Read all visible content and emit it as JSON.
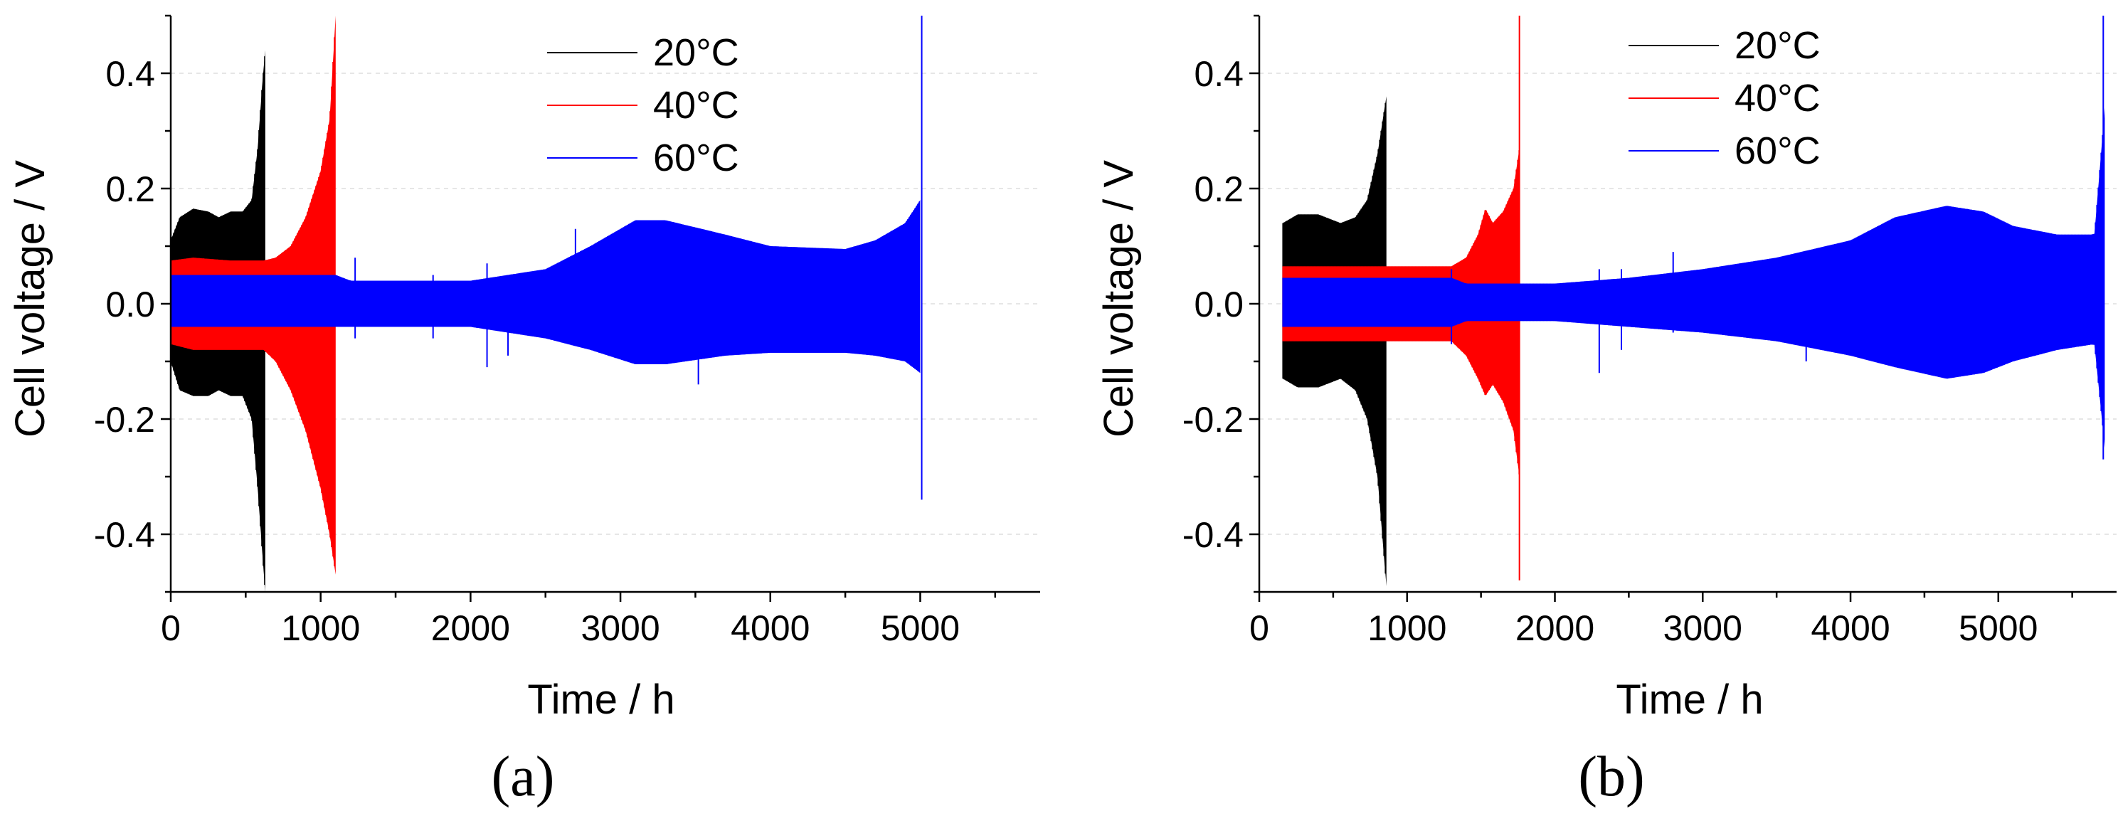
{
  "figure": {
    "colors": {
      "20C": "#000000",
      "40C": "#ff0000",
      "60C": "#0000ff",
      "grid": "#dddddd",
      "axis": "#000000"
    }
  },
  "chart_data": [
    {
      "type": "line",
      "panel_label": "(a)",
      "xlabel": "Time / h",
      "ylabel": "Cell voltage / V",
      "xlim": [
        0,
        5800
      ],
      "ylim": [
        -0.5,
        0.5
      ],
      "xticks": [
        0,
        1000,
        2000,
        3000,
        4000,
        5000
      ],
      "xtick_labels": [
        "0",
        "1000",
        "2000",
        "3000",
        "4000",
        "5000"
      ],
      "yticks": [
        -0.4,
        -0.2,
        0.0,
        0.2,
        0.4
      ],
      "ytick_labels": [
        "-0.4",
        "-0.2",
        "0.0",
        "0.2",
        "0.4"
      ],
      "grid": true,
      "legend": [
        "20°C",
        "40°C",
        "60°C"
      ],
      "legend_position": "top-center",
      "series": [
        {
          "name": "20°C",
          "color": "#000000",
          "upper": [
            [
              0,
              0.11
            ],
            [
              60,
              0.15
            ],
            [
              150,
              0.165
            ],
            [
              250,
              0.16
            ],
            [
              320,
              0.15
            ],
            [
              400,
              0.16
            ],
            [
              480,
              0.16
            ],
            [
              540,
              0.18
            ],
            [
              580,
              0.27
            ],
            [
              610,
              0.38
            ],
            [
              630,
              0.44
            ]
          ],
          "lower": [
            [
              0,
              -0.1
            ],
            [
              60,
              -0.15
            ],
            [
              150,
              -0.16
            ],
            [
              250,
              -0.16
            ],
            [
              320,
              -0.15
            ],
            [
              400,
              -0.16
            ],
            [
              480,
              -0.16
            ],
            [
              540,
              -0.2
            ],
            [
              580,
              -0.32
            ],
            [
              610,
              -0.43
            ],
            [
              630,
              -0.5
            ]
          ]
        },
        {
          "name": "40°C",
          "color": "#ff0000",
          "upper": [
            [
              0,
              0.075
            ],
            [
              150,
              0.08
            ],
            [
              400,
              0.075
            ],
            [
              620,
              0.075
            ],
            [
              700,
              0.08
            ],
            [
              800,
              0.1
            ],
            [
              900,
              0.15
            ],
            [
              1000,
              0.23
            ],
            [
              1060,
              0.32
            ],
            [
              1100,
              0.5
            ]
          ],
          "lower": [
            [
              0,
              -0.07
            ],
            [
              150,
              -0.08
            ],
            [
              400,
              -0.08
            ],
            [
              620,
              -0.08
            ],
            [
              700,
              -0.1
            ],
            [
              800,
              -0.15
            ],
            [
              900,
              -0.22
            ],
            [
              1000,
              -0.32
            ],
            [
              1060,
              -0.4
            ],
            [
              1100,
              -0.47
            ]
          ]
        },
        {
          "name": "60°C",
          "color": "#0000ff",
          "upper": [
            [
              0,
              0.05
            ],
            [
              1100,
              0.05
            ],
            [
              1200,
              0.04
            ],
            [
              2000,
              0.04
            ],
            [
              2500,
              0.06
            ],
            [
              2800,
              0.1
            ],
            [
              3100,
              0.145
            ],
            [
              3300,
              0.145
            ],
            [
              3700,
              0.12
            ],
            [
              4000,
              0.1
            ],
            [
              4500,
              0.095
            ],
            [
              4700,
              0.11
            ],
            [
              4900,
              0.14
            ],
            [
              5000,
              0.18
            ]
          ],
          "lower": [
            [
              0,
              -0.04
            ],
            [
              1100,
              -0.04
            ],
            [
              1200,
              -0.04
            ],
            [
              2000,
              -0.04
            ],
            [
              2500,
              -0.06
            ],
            [
              2800,
              -0.08
            ],
            [
              3100,
              -0.105
            ],
            [
              3300,
              -0.105
            ],
            [
              3700,
              -0.09
            ],
            [
              4000,
              -0.085
            ],
            [
              4500,
              -0.085
            ],
            [
              4700,
              -0.09
            ],
            [
              4900,
              -0.1
            ],
            [
              5000,
              -0.12
            ]
          ],
          "spikes": [
            [
              1230,
              0.08,
              -0.06
            ],
            [
              1750,
              0.05,
              -0.06
            ],
            [
              2110,
              0.07,
              -0.11
            ],
            [
              2250,
              0.05,
              -0.09
            ],
            [
              2700,
              0.13,
              -0.05
            ],
            [
              3000,
              0.12,
              -0.06
            ],
            [
              3520,
              0.1,
              -0.14
            ],
            [
              5010,
              0.5,
              -0.34
            ]
          ]
        }
      ]
    },
    {
      "type": "line",
      "panel_label": "(b)",
      "xlabel": "Time / h",
      "ylabel": "Cell voltage / V",
      "xlim": [
        0,
        5800
      ],
      "ylim": [
        -0.5,
        0.5
      ],
      "xticks": [
        0,
        1000,
        2000,
        3000,
        4000,
        5000
      ],
      "xtick_labels": [
        "0",
        "1000",
        "2000",
        "3000",
        "4000",
        "5000"
      ],
      "yticks": [
        -0.4,
        -0.2,
        0.0,
        0.2,
        0.4
      ],
      "ytick_labels": [
        "-0.4",
        "-0.2",
        "0.0",
        "0.2",
        "0.4"
      ],
      "grid": true,
      "legend": [
        "20°C",
        "40°C",
        "60°C"
      ],
      "legend_position": "top-center",
      "series": [
        {
          "name": "20°C",
          "color": "#000000",
          "upper": [
            [
              160,
              0.14
            ],
            [
              260,
              0.155
            ],
            [
              400,
              0.155
            ],
            [
              550,
              0.14
            ],
            [
              650,
              0.15
            ],
            [
              730,
              0.18
            ],
            [
              800,
              0.26
            ],
            [
              860,
              0.36
            ]
          ],
          "lower": [
            [
              160,
              -0.13
            ],
            [
              260,
              -0.145
            ],
            [
              400,
              -0.145
            ],
            [
              550,
              -0.13
            ],
            [
              650,
              -0.15
            ],
            [
              730,
              -0.2
            ],
            [
              800,
              -0.3
            ],
            [
              860,
              -0.49
            ]
          ]
        },
        {
          "name": "40°C",
          "color": "#ff0000",
          "upper": [
            [
              160,
              0.065
            ],
            [
              860,
              0.065
            ],
            [
              1300,
              0.065
            ],
            [
              1400,
              0.08
            ],
            [
              1480,
              0.12
            ],
            [
              1530,
              0.165
            ],
            [
              1580,
              0.14
            ],
            [
              1650,
              0.16
            ],
            [
              1720,
              0.2
            ],
            [
              1760,
              0.27
            ]
          ],
          "lower": [
            [
              160,
              -0.065
            ],
            [
              860,
              -0.065
            ],
            [
              1300,
              -0.065
            ],
            [
              1400,
              -0.09
            ],
            [
              1480,
              -0.13
            ],
            [
              1530,
              -0.16
            ],
            [
              1580,
              -0.14
            ],
            [
              1650,
              -0.17
            ],
            [
              1720,
              -0.22
            ],
            [
              1760,
              -0.3
            ]
          ],
          "spikes": [
            [
              1760,
              0.5,
              -0.48
            ]
          ]
        },
        {
          "name": "60°C",
          "color": "#0000ff",
          "upper": [
            [
              160,
              0.045
            ],
            [
              1300,
              0.045
            ],
            [
              1400,
              0.035
            ],
            [
              2000,
              0.035
            ],
            [
              2500,
              0.045
            ],
            [
              3000,
              0.06
            ],
            [
              3500,
              0.08
            ],
            [
              4000,
              0.11
            ],
            [
              4300,
              0.15
            ],
            [
              4650,
              0.17
            ],
            [
              4900,
              0.16
            ],
            [
              5100,
              0.135
            ],
            [
              5400,
              0.12
            ],
            [
              5650,
              0.12
            ],
            [
              5720,
              0.34
            ]
          ],
          "lower": [
            [
              160,
              -0.04
            ],
            [
              1300,
              -0.04
            ],
            [
              1400,
              -0.03
            ],
            [
              2000,
              -0.03
            ],
            [
              2500,
              -0.04
            ],
            [
              3000,
              -0.05
            ],
            [
              3500,
              -0.065
            ],
            [
              4000,
              -0.09
            ],
            [
              4300,
              -0.11
            ],
            [
              4650,
              -0.13
            ],
            [
              4900,
              -0.12
            ],
            [
              5100,
              -0.1
            ],
            [
              5400,
              -0.08
            ],
            [
              5650,
              -0.07
            ],
            [
              5720,
              -0.25
            ]
          ],
          "spikes": [
            [
              1300,
              0.06,
              -0.07
            ],
            [
              2300,
              0.06,
              -0.12
            ],
            [
              2450,
              0.06,
              -0.08
            ],
            [
              2800,
              0.09,
              -0.05
            ],
            [
              3700,
              0.06,
              -0.1
            ],
            [
              5710,
              0.5,
              -0.27
            ]
          ]
        }
      ]
    }
  ]
}
